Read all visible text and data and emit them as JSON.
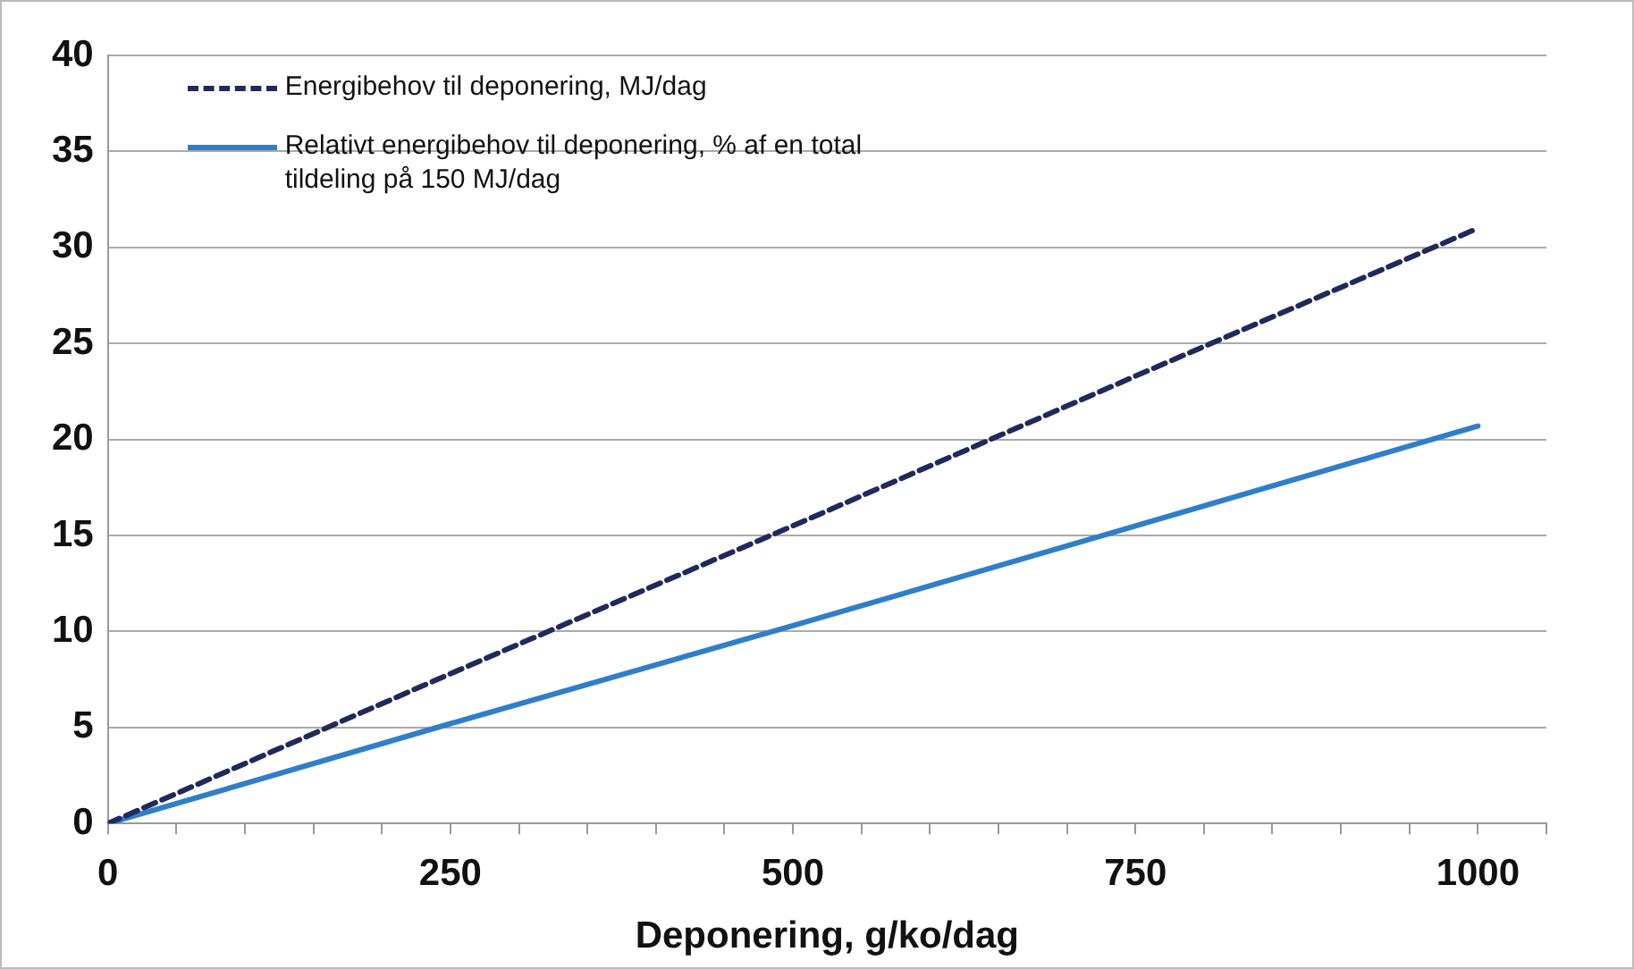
{
  "chart_data": {
    "type": "line",
    "xlabel": "Deponering, g/ko/dag",
    "x": [
      0,
      250,
      500,
      750,
      1000
    ],
    "series": [
      {
        "name": "Energibehov til deponering, MJ/dag",
        "color": "#1f2a5c",
        "line_style": "dashed",
        "values": [
          0,
          7.8,
          15.5,
          23.3,
          31
        ]
      },
      {
        "name": "Relativt energibehov til deponering, % af en total tildeling på 150 MJ/dag",
        "color": "#2f7fc8",
        "line_style": "solid",
        "values": [
          0,
          5.2,
          10.3,
          15.5,
          20.7
        ]
      }
    ],
    "xlim": [
      0,
      1050
    ],
    "xticks": [
      0,
      {
        "value": 50,
        "label": null
      },
      {
        "value": 100,
        "label": null
      },
      {
        "value": 150,
        "label": null
      },
      {
        "value": 200,
        "label": null
      },
      250,
      {
        "value": 300,
        "label": null
      },
      {
        "value": 350,
        "label": null
      },
      {
        "value": 400,
        "label": null
      },
      {
        "value": 450,
        "label": null
      },
      500,
      {
        "value": 550,
        "label": null
      },
      {
        "value": 600,
        "label": null
      },
      {
        "value": 650,
        "label": null
      },
      {
        "value": 700,
        "label": null
      },
      750,
      {
        "value": 800,
        "label": null
      },
      {
        "value": 850,
        "label": null
      },
      {
        "value": 900,
        "label": null
      },
      {
        "value": 950,
        "label": null
      },
      1000,
      {
        "value": 1050,
        "label": null
      }
    ],
    "ylim": [
      0,
      40
    ],
    "yticks": [
      0,
      5,
      10,
      15,
      20,
      25,
      30,
      35,
      40
    ],
    "grid": "y",
    "legend": "top left",
    "marker": "none"
  }
}
